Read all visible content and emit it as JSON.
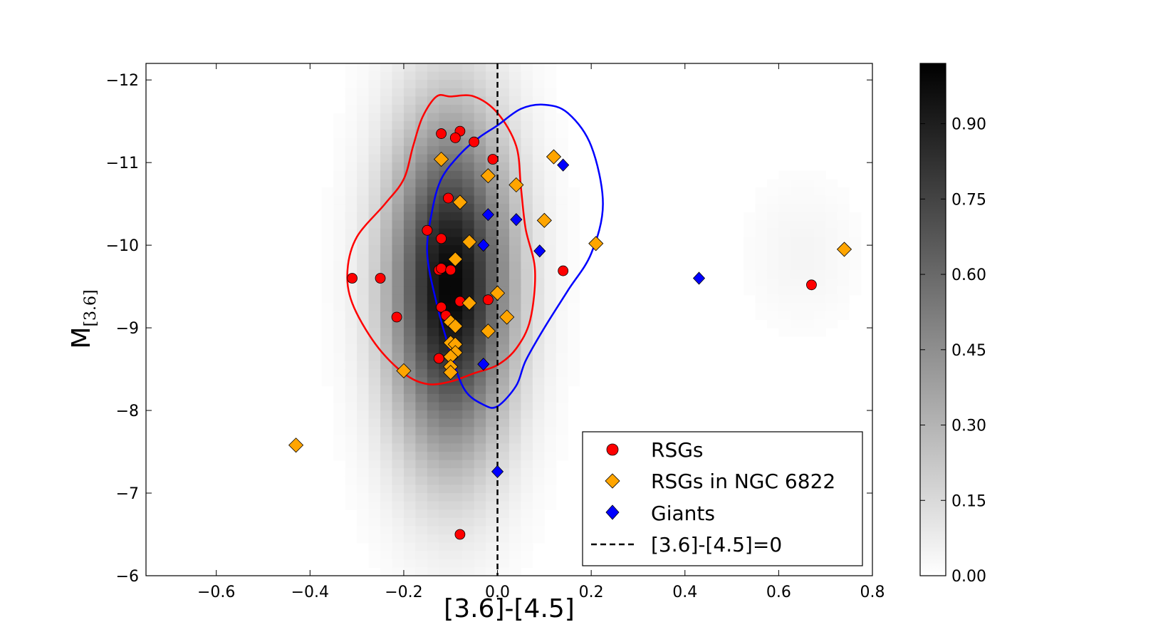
{
  "chart_data": {
    "type": "scatter",
    "title": "",
    "xlabel": "[3.6]-[4.5]",
    "ylabel": "M",
    "ylabel_sub": "[3.6]",
    "xlim": [
      -0.75,
      0.8
    ],
    "ylim": [
      -6,
      -12.2
    ],
    "y_inverted": true,
    "x_ticks": [
      -0.6,
      -0.4,
      -0.2,
      0.0,
      0.2,
      0.4,
      0.6,
      0.8
    ],
    "x_tick_labels": [
      "−0.6",
      "−0.4",
      "−0.2",
      "0.0",
      "0.2",
      "0.4",
      "0.6",
      "0.8"
    ],
    "y_ticks": [
      -12,
      -11,
      -10,
      -9,
      -8,
      -7,
      -6
    ],
    "y_tick_labels": [
      "−12",
      "−11",
      "−10",
      "−9",
      "−8",
      "−7",
      "−6"
    ],
    "colorbar": {
      "ticks": [
        0.0,
        0.15,
        0.3,
        0.45,
        0.6,
        0.75,
        0.9
      ],
      "tick_labels": [
        "0.00",
        "0.15",
        "0.30",
        "0.45",
        "0.60",
        "0.75",
        "0.90"
      ],
      "range": [
        0.0,
        1.02
      ],
      "colormap": "gray_r"
    },
    "density": {
      "description_hidden": false,
      "peak_x": -0.1,
      "peak_y": -9.5,
      "sigma_x": 0.09,
      "sigma_y": 1.4,
      "bin_x": 0.025,
      "bin_y": 0.1,
      "secondary": {
        "x": 0.65,
        "y": -9.9,
        "sigma_x": 0.08,
        "sigma_y": 0.6,
        "amp": 0.04
      }
    },
    "vline": {
      "x": 0.0,
      "style": "dashed",
      "color": "#000000"
    },
    "contours": [
      {
        "name": "RSGs contour",
        "color": "#ff0000",
        "points": [
          [
            -0.1,
            -11.8
          ],
          [
            -0.05,
            -11.8
          ],
          [
            0.0,
            -11.6
          ],
          [
            0.04,
            -11.2
          ],
          [
            0.05,
            -10.7
          ],
          [
            0.06,
            -10.2
          ],
          [
            0.08,
            -9.7
          ],
          [
            0.07,
            -9.1
          ],
          [
            0.04,
            -8.75
          ],
          [
            0.0,
            -8.55
          ],
          [
            -0.05,
            -8.45
          ],
          [
            -0.1,
            -8.35
          ],
          [
            -0.15,
            -8.32
          ],
          [
            -0.2,
            -8.45
          ],
          [
            -0.26,
            -8.8
          ],
          [
            -0.31,
            -9.3
          ],
          [
            -0.32,
            -9.7
          ],
          [
            -0.3,
            -10.1
          ],
          [
            -0.24,
            -10.5
          ],
          [
            -0.2,
            -10.8
          ],
          [
            -0.18,
            -11.2
          ],
          [
            -0.16,
            -11.55
          ],
          [
            -0.13,
            -11.8
          ]
        ]
      },
      {
        "name": "Giants contour",
        "color": "#0000ff",
        "points": [
          [
            0.0,
            -11.45
          ],
          [
            0.05,
            -11.65
          ],
          [
            0.1,
            -11.7
          ],
          [
            0.15,
            -11.6
          ],
          [
            0.2,
            -11.2
          ],
          [
            0.225,
            -10.5
          ],
          [
            0.2,
            -9.9
          ],
          [
            0.15,
            -9.45
          ],
          [
            0.1,
            -9.0
          ],
          [
            0.06,
            -8.6
          ],
          [
            0.04,
            -8.3
          ],
          [
            0.0,
            -8.05
          ],
          [
            -0.03,
            -8.07
          ],
          [
            -0.07,
            -8.25
          ],
          [
            -0.1,
            -8.7
          ],
          [
            -0.13,
            -9.3
          ],
          [
            -0.15,
            -9.9
          ],
          [
            -0.14,
            -10.4
          ],
          [
            -0.12,
            -10.8
          ],
          [
            -0.08,
            -11.1
          ],
          [
            -0.04,
            -11.3
          ]
        ]
      }
    ],
    "series": [
      {
        "name": "RSGs",
        "marker": "circle",
        "color": "#ff0000",
        "points": [
          [
            -0.12,
            -11.35
          ],
          [
            -0.08,
            -11.38
          ],
          [
            -0.09,
            -11.3
          ],
          [
            -0.05,
            -11.25
          ],
          [
            -0.01,
            -11.04
          ],
          [
            -0.105,
            -10.57
          ],
          [
            -0.15,
            -10.18
          ],
          [
            -0.12,
            -10.08
          ],
          [
            -0.31,
            -9.6
          ],
          [
            -0.25,
            -9.6
          ],
          [
            -0.125,
            -9.7
          ],
          [
            -0.12,
            -9.72
          ],
          [
            -0.1,
            -9.7
          ],
          [
            -0.08,
            -9.32
          ],
          [
            -0.02,
            -9.34
          ],
          [
            -0.12,
            -9.25
          ],
          [
            -0.11,
            -9.15
          ],
          [
            -0.215,
            -9.13
          ],
          [
            -0.125,
            -8.63
          ],
          [
            0.14,
            -9.69
          ],
          [
            0.67,
            -9.52
          ],
          [
            -0.08,
            -6.5
          ]
        ]
      },
      {
        "name": "RSGs in NGC 6822",
        "marker": "diamond",
        "color": "#ffa500",
        "points": [
          [
            -0.12,
            -11.04
          ],
          [
            0.12,
            -11.07
          ],
          [
            -0.02,
            -10.84
          ],
          [
            0.04,
            -10.73
          ],
          [
            -0.08,
            -10.52
          ],
          [
            0.1,
            -10.3
          ],
          [
            -0.06,
            -10.04
          ],
          [
            -0.09,
            -9.83
          ],
          [
            0.0,
            -9.42
          ],
          [
            -0.06,
            -9.3
          ],
          [
            0.02,
            -9.13
          ],
          [
            -0.1,
            -9.07
          ],
          [
            -0.09,
            -9.02
          ],
          [
            -0.02,
            -8.96
          ],
          [
            -0.1,
            -8.82
          ],
          [
            -0.09,
            -8.8
          ],
          [
            -0.09,
            -8.7
          ],
          [
            -0.1,
            -8.65
          ],
          [
            -0.1,
            -8.53
          ],
          [
            -0.1,
            -8.46
          ],
          [
            -0.2,
            -8.48
          ],
          [
            0.21,
            -10.02
          ],
          [
            0.74,
            -9.95
          ],
          [
            -0.43,
            -7.58
          ]
        ]
      },
      {
        "name": "Giants",
        "marker": "diamond",
        "color": "#0000ff",
        "points": [
          [
            0.14,
            -10.97
          ],
          [
            -0.02,
            -10.37
          ],
          [
            0.04,
            -10.31
          ],
          [
            -0.03,
            -10.0
          ],
          [
            0.09,
            -9.93
          ],
          [
            0.43,
            -9.6
          ],
          [
            -0.03,
            -8.56
          ],
          [
            0.0,
            -7.26
          ]
        ]
      }
    ],
    "legend": {
      "placement": "lower-right",
      "entries": [
        {
          "label": "RSGs",
          "marker": "circle",
          "color": "#ff0000"
        },
        {
          "label": "RSGs in NGC 6822",
          "marker": "diamond",
          "color": "#ffa500"
        },
        {
          "label": "Giants",
          "marker": "diamond",
          "color": "#0000ff"
        },
        {
          "label": "[3.6]-[4.5]=0",
          "marker": "dashed-line",
          "color": "#000000"
        }
      ]
    }
  }
}
